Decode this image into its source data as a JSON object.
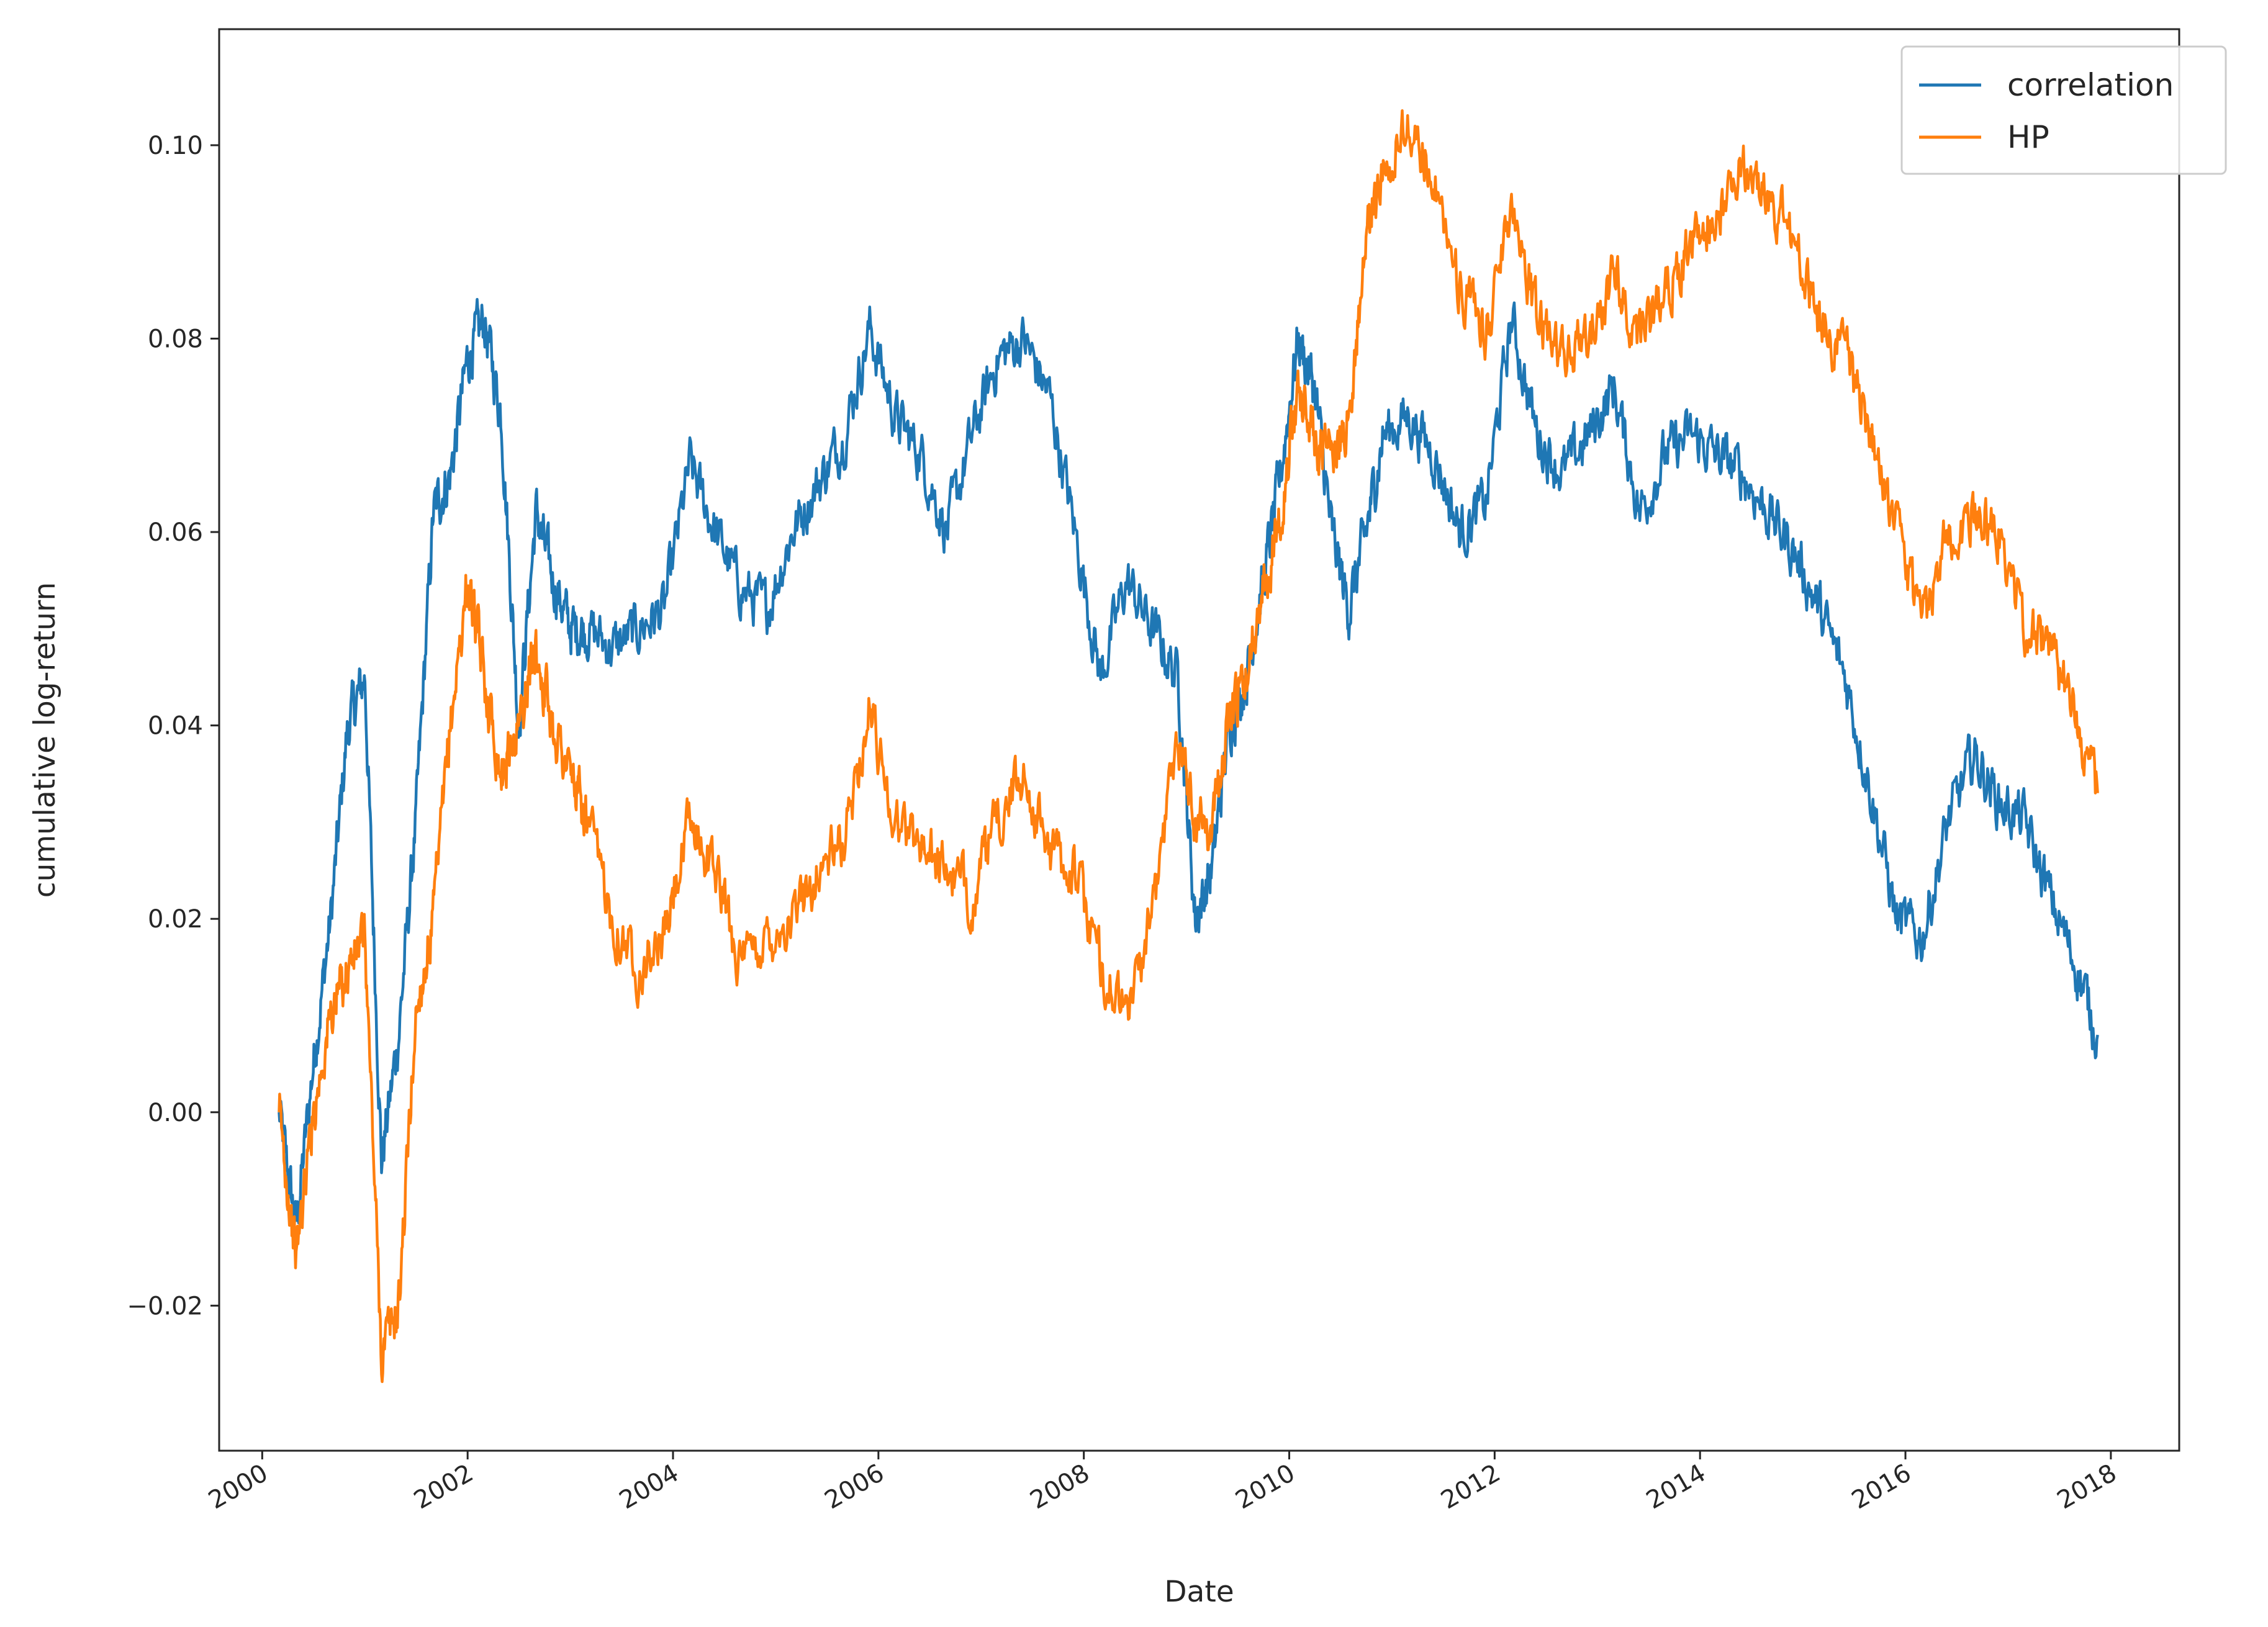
{
  "chart_data": {
    "type": "line",
    "title": "",
    "xlabel": "Date",
    "ylabel": "cumulative log-return",
    "x_type": "date",
    "xlim": [
      "1999-08-01",
      "2018-09-01"
    ],
    "ylim": [
      -0.035,
      0.112
    ],
    "x_ticks": [
      "2000",
      "2002",
      "2004",
      "2006",
      "2008",
      "2010",
      "2012",
      "2014",
      "2016",
      "2018"
    ],
    "y_ticks": [
      -0.02,
      0.0,
      0.02,
      0.04,
      0.06,
      0.08,
      0.1
    ],
    "y_tick_labels": [
      "−0.02",
      "0.00",
      "0.02",
      "0.04",
      "0.06",
      "0.08",
      "0.10"
    ],
    "grid": false,
    "legend": "top-right",
    "series": [
      {
        "name": "correlation",
        "color": "#1f77b4",
        "x": [
          "2000-03-01",
          "2000-05-01",
          "2000-07-01",
          "2000-09-01",
          "2000-11-01",
          "2001-01-01",
          "2001-03-01",
          "2001-05-01",
          "2001-07-01",
          "2001-09-01",
          "2001-11-01",
          "2002-01-01",
          "2002-03-01",
          "2002-05-01",
          "2002-07-01",
          "2002-09-01",
          "2002-11-01",
          "2003-01-01",
          "2003-03-01",
          "2003-06-01",
          "2003-09-01",
          "2003-12-01",
          "2004-03-01",
          "2004-06-01",
          "2004-09-01",
          "2004-12-01",
          "2005-03-01",
          "2005-06-01",
          "2005-09-01",
          "2005-12-01",
          "2006-03-01",
          "2006-06-01",
          "2006-09-01",
          "2006-12-01",
          "2007-03-01",
          "2007-06-01",
          "2007-09-01",
          "2007-12-01",
          "2008-03-01",
          "2008-06-01",
          "2008-09-01",
          "2008-12-01",
          "2009-02-01",
          "2009-04-01",
          "2009-06-01",
          "2009-08-01",
          "2009-10-01",
          "2009-12-01",
          "2010-02-01",
          "2010-04-01",
          "2010-06-01",
          "2010-08-01",
          "2010-10-01",
          "2010-12-01",
          "2011-03-01",
          "2011-06-01",
          "2011-09-01",
          "2011-12-01",
          "2012-03-01",
          "2012-06-01",
          "2012-09-01",
          "2012-12-01",
          "2013-03-01",
          "2013-06-01",
          "2013-09-01",
          "2013-12-01",
          "2014-03-01",
          "2014-06-01",
          "2014-09-01",
          "2014-12-01",
          "2015-03-01",
          "2015-06-01",
          "2015-09-01",
          "2015-12-01",
          "2016-03-01",
          "2016-06-01",
          "2016-09-01",
          "2016-12-01",
          "2017-03-01",
          "2017-06-01",
          "2017-09-01",
          "2017-11-15"
        ],
        "y": [
          0.0,
          -0.012,
          0.005,
          0.02,
          0.04,
          0.045,
          -0.005,
          0.008,
          0.03,
          0.062,
          0.066,
          0.078,
          0.082,
          0.072,
          0.04,
          0.062,
          0.055,
          0.05,
          0.05,
          0.048,
          0.05,
          0.052,
          0.067,
          0.06,
          0.054,
          0.052,
          0.06,
          0.065,
          0.07,
          0.081,
          0.072,
          0.068,
          0.06,
          0.07,
          0.078,
          0.08,
          0.074,
          0.06,
          0.045,
          0.055,
          0.05,
          0.045,
          0.02,
          0.025,
          0.04,
          0.045,
          0.055,
          0.066,
          0.08,
          0.075,
          0.06,
          0.052,
          0.06,
          0.07,
          0.072,
          0.068,
          0.06,
          0.063,
          0.082,
          0.07,
          0.066,
          0.07,
          0.075,
          0.062,
          0.068,
          0.07,
          0.068,
          0.066,
          0.062,
          0.058,
          0.052,
          0.045,
          0.033,
          0.02,
          0.018,
          0.03,
          0.037,
          0.032,
          0.03,
          0.022,
          0.015,
          0.008
        ]
      },
      {
        "name": "HP",
        "color": "#ff7f0e",
        "x": [
          "2000-03-01",
          "2000-05-01",
          "2000-07-01",
          "2000-09-01",
          "2000-11-01",
          "2001-01-01",
          "2001-03-01",
          "2001-05-01",
          "2001-07-01",
          "2001-09-01",
          "2001-11-01",
          "2002-01-01",
          "2002-03-01",
          "2002-05-01",
          "2002-07-01",
          "2002-09-01",
          "2002-11-01",
          "2003-01-01",
          "2003-03-01",
          "2003-06-01",
          "2003-09-01",
          "2003-12-01",
          "2004-03-01",
          "2004-06-01",
          "2004-09-01",
          "2004-12-01",
          "2005-03-01",
          "2005-06-01",
          "2005-09-01",
          "2005-12-01",
          "2006-03-01",
          "2006-06-01",
          "2006-09-01",
          "2006-12-01",
          "2007-03-01",
          "2007-06-01",
          "2007-09-01",
          "2007-12-01",
          "2008-03-01",
          "2008-06-01",
          "2008-09-01",
          "2008-12-01",
          "2009-02-01",
          "2009-04-01",
          "2009-06-01",
          "2009-08-01",
          "2009-10-01",
          "2009-12-01",
          "2010-02-01",
          "2010-04-01",
          "2010-06-01",
          "2010-08-01",
          "2010-10-01",
          "2010-12-01",
          "2011-03-01",
          "2011-06-01",
          "2011-09-01",
          "2011-12-01",
          "2012-03-01",
          "2012-06-01",
          "2012-09-01",
          "2012-12-01",
          "2013-03-01",
          "2013-06-01",
          "2013-09-01",
          "2013-12-01",
          "2014-03-01",
          "2014-06-01",
          "2014-09-01",
          "2014-12-01",
          "2015-03-01",
          "2015-06-01",
          "2015-09-01",
          "2015-12-01",
          "2016-03-01",
          "2016-06-01",
          "2016-09-01",
          "2016-12-01",
          "2017-03-01",
          "2017-06-01",
          "2017-09-01",
          "2017-11-15"
        ],
        "y": [
          0.0,
          -0.015,
          0.0,
          0.01,
          0.015,
          0.018,
          -0.025,
          -0.02,
          0.01,
          0.02,
          0.04,
          0.055,
          0.045,
          0.035,
          0.04,
          0.048,
          0.04,
          0.035,
          0.03,
          0.02,
          0.015,
          0.018,
          0.03,
          0.025,
          0.015,
          0.018,
          0.02,
          0.025,
          0.028,
          0.042,
          0.03,
          0.028,
          0.025,
          0.022,
          0.03,
          0.035,
          0.027,
          0.025,
          0.015,
          0.01,
          0.02,
          0.04,
          0.03,
          0.03,
          0.04,
          0.045,
          0.055,
          0.062,
          0.075,
          0.07,
          0.068,
          0.072,
          0.09,
          0.098,
          0.102,
          0.097,
          0.085,
          0.08,
          0.095,
          0.082,
          0.078,
          0.08,
          0.087,
          0.08,
          0.085,
          0.09,
          0.093,
          0.098,
          0.095,
          0.09,
          0.082,
          0.078,
          0.07,
          0.06,
          0.05,
          0.06,
          0.062,
          0.06,
          0.05,
          0.048,
          0.042,
          0.033
        ]
      }
    ]
  }
}
